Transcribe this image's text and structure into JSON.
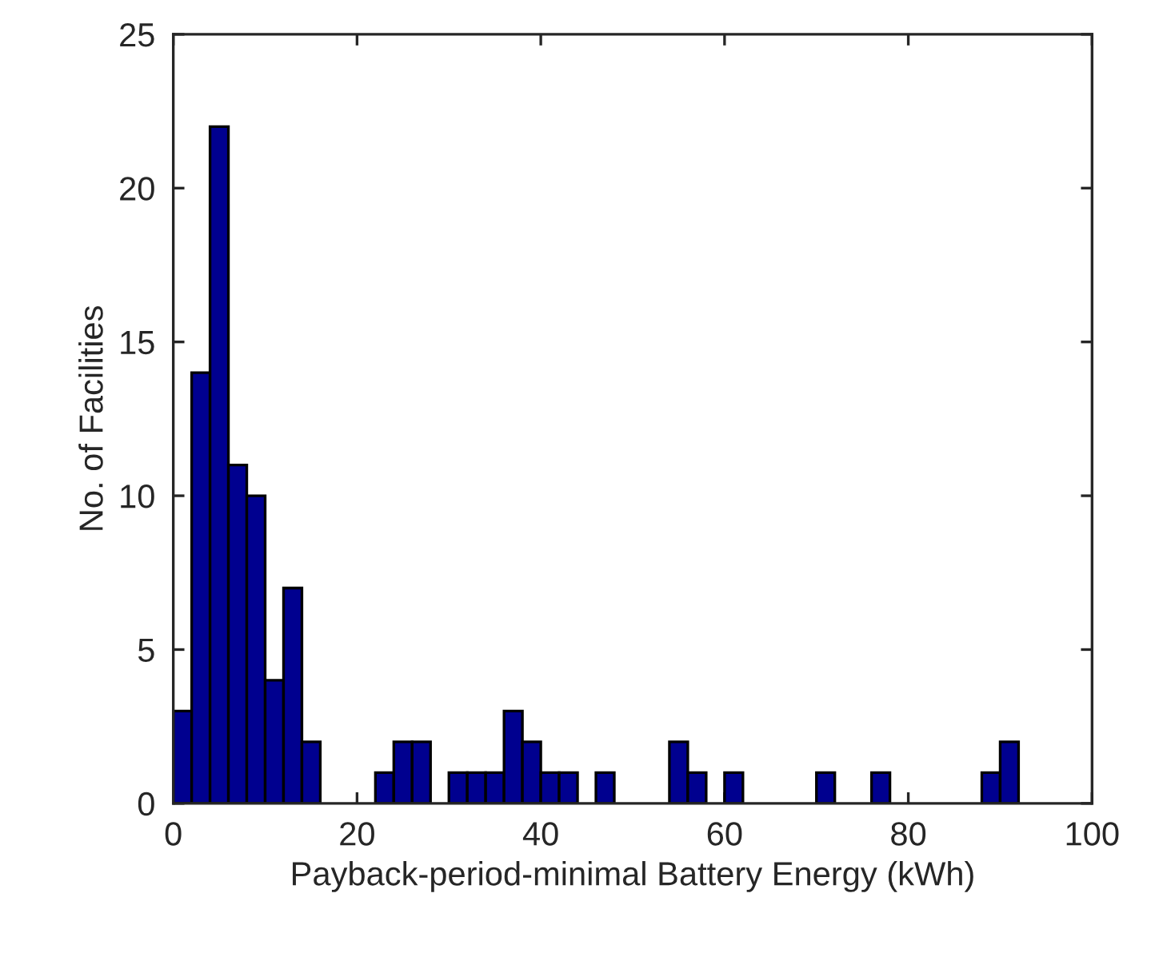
{
  "chart_data": {
    "type": "histogram",
    "xlabel": "Payback-period-minimal Battery Energy (kWh)",
    "ylabel": "No. of Facilities",
    "bins": [
      0,
      2,
      4,
      6,
      8,
      10,
      12,
      14,
      16,
      18,
      20,
      22,
      24,
      26,
      28,
      30,
      32,
      34,
      36,
      38,
      40,
      42,
      44,
      46,
      48,
      50,
      52,
      54,
      56,
      58,
      60,
      62,
      64,
      66,
      68,
      70,
      72,
      74,
      76,
      78,
      80,
      82,
      84,
      86,
      88,
      90,
      92
    ],
    "values": [
      3,
      14,
      22,
      11,
      10,
      4,
      7,
      2,
      0,
      0,
      0,
      1,
      2,
      2,
      0,
      1,
      1,
      1,
      3,
      2,
      1,
      1,
      0,
      1,
      0,
      0,
      0,
      2,
      1,
      0,
      1,
      0,
      0,
      0,
      0,
      1,
      0,
      0,
      1,
      0,
      0,
      0,
      0,
      0,
      1,
      2
    ],
    "color": "#00008f",
    "xlim": [
      0,
      100
    ],
    "xticks": [
      0,
      20,
      40,
      60,
      80,
      100
    ],
    "ylim": [
      0,
      25
    ],
    "yticks": [
      0,
      5,
      10,
      15,
      20,
      25
    ],
    "grid": false,
    "legend": false
  }
}
